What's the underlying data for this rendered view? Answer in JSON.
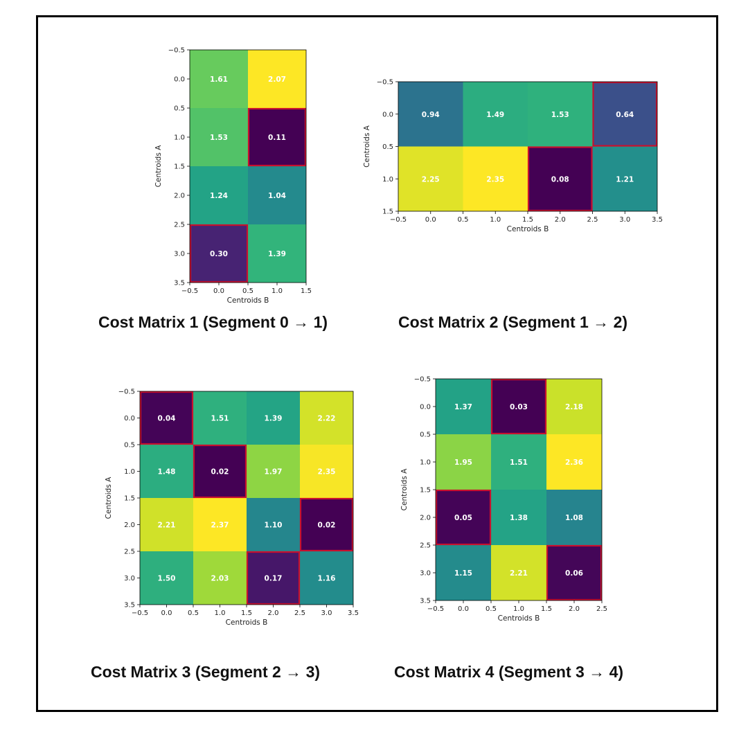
{
  "colors": {
    "colormap": "viridis",
    "highlight_border": "#c8102e",
    "frame": "#000000",
    "background": "#ffffff"
  },
  "chart_data": [
    {
      "type": "heatmap",
      "caption": "Cost Matrix 1 (Segment 0 → 1)",
      "xlabel": "Centroids B",
      "ylabel": "Centroids A",
      "rows": 4,
      "cols": 2,
      "values": [
        [
          1.61,
          2.07
        ],
        [
          1.53,
          0.11
        ],
        [
          1.24,
          1.04
        ],
        [
          0.3,
          1.39
        ]
      ],
      "labels": [
        [
          "1.61",
          "2.07"
        ],
        [
          "1.53",
          "0.11"
        ],
        [
          "1.24",
          "1.04"
        ],
        [
          "0.30",
          "1.39"
        ]
      ],
      "highlighted": [
        [
          1,
          1
        ],
        [
          3,
          0
        ]
      ],
      "x_ticks": [
        "−0.5",
        "0.0",
        "0.5",
        "1.0",
        "1.5"
      ],
      "y_ticks": [
        "−0.5",
        "0.0",
        "0.5",
        "1.0",
        "1.5",
        "2.0",
        "2.5",
        "3.0",
        "3.5"
      ],
      "xlim": [
        -0.5,
        1.5
      ],
      "ylim": [
        3.5,
        -0.5
      ],
      "vmin": 0.11,
      "vmax": 2.07
    },
    {
      "type": "heatmap",
      "caption": "Cost Matrix 2 (Segment 1 → 2)",
      "xlabel": "Centroids B",
      "ylabel": "Centroids A",
      "rows": 2,
      "cols": 4,
      "values": [
        [
          0.94,
          1.49,
          1.53,
          0.64
        ],
        [
          2.25,
          2.35,
          0.08,
          1.21
        ]
      ],
      "labels": [
        [
          "0.94",
          "1.49",
          "1.53",
          "0.64"
        ],
        [
          "2.25",
          "2.35",
          "0.08",
          "1.21"
        ]
      ],
      "highlighted": [
        [
          0,
          3
        ],
        [
          1,
          2
        ]
      ],
      "x_ticks": [
        "−0.5",
        "0.0",
        "0.5",
        "1.0",
        "1.5",
        "2.0",
        "2.5",
        "3.0",
        "3.5"
      ],
      "y_ticks": [
        "−0.5",
        "0.0",
        "0.5",
        "1.0",
        "1.5"
      ],
      "xlim": [
        -0.5,
        3.5
      ],
      "ylim": [
        1.5,
        -0.5
      ],
      "vmin": 0.08,
      "vmax": 2.35
    },
    {
      "type": "heatmap",
      "caption": "Cost Matrix 3 (Segment 2 → 3)",
      "xlabel": "Centroids B",
      "ylabel": "Centroids A",
      "rows": 4,
      "cols": 4,
      "values": [
        [
          0.04,
          1.51,
          1.39,
          2.22
        ],
        [
          1.48,
          0.02,
          1.97,
          2.35
        ],
        [
          2.21,
          2.37,
          1.1,
          0.02
        ],
        [
          1.5,
          2.03,
          0.17,
          1.16
        ]
      ],
      "labels": [
        [
          "0.04",
          "1.51",
          "1.39",
          "2.22"
        ],
        [
          "1.48",
          "0.02",
          "1.97",
          "2.35"
        ],
        [
          "2.21",
          "2.37",
          "1.10",
          "0.02"
        ],
        [
          "1.50",
          "2.03",
          "0.17",
          "1.16"
        ]
      ],
      "highlighted": [
        [
          0,
          0
        ],
        [
          1,
          1
        ],
        [
          2,
          3
        ],
        [
          3,
          2
        ]
      ],
      "x_ticks": [
        "−0.5",
        "0.0",
        "0.5",
        "1.0",
        "1.5",
        "2.0",
        "2.5",
        "3.0",
        "3.5"
      ],
      "y_ticks": [
        "−0.5",
        "0.0",
        "0.5",
        "1.0",
        "1.5",
        "2.0",
        "2.5",
        "3.0",
        "3.5"
      ],
      "xlim": [
        -0.5,
        3.5
      ],
      "ylim": [
        3.5,
        -0.5
      ],
      "vmin": 0.02,
      "vmax": 2.37
    },
    {
      "type": "heatmap",
      "caption": "Cost Matrix 4 (Segment 3 → 4)",
      "xlabel": "Centroids B",
      "ylabel": "Centroids A",
      "rows": 4,
      "cols": 3,
      "values": [
        [
          1.37,
          0.03,
          2.18
        ],
        [
          1.95,
          1.51,
          2.36
        ],
        [
          0.05,
          1.38,
          1.08
        ],
        [
          1.15,
          2.21,
          0.06
        ]
      ],
      "labels": [
        [
          "1.37",
          "0.03",
          "2.18"
        ],
        [
          "1.95",
          "1.51",
          "2.36"
        ],
        [
          "0.05",
          "1.38",
          "1.08"
        ],
        [
          "1.15",
          "2.21",
          "0.06"
        ]
      ],
      "highlighted": [
        [
          0,
          1
        ],
        [
          2,
          0
        ],
        [
          3,
          2
        ]
      ],
      "x_ticks": [
        "−0.5",
        "0.0",
        "0.5",
        "1.0",
        "1.5",
        "2.0",
        "2.5"
      ],
      "y_ticks": [
        "−0.5",
        "0.0",
        "0.5",
        "1.0",
        "1.5",
        "2.0",
        "2.5",
        "3.0",
        "3.5"
      ],
      "xlim": [
        -0.5,
        2.5
      ],
      "ylim": [
        3.5,
        -0.5
      ],
      "vmin": 0.03,
      "vmax": 2.36
    }
  ]
}
